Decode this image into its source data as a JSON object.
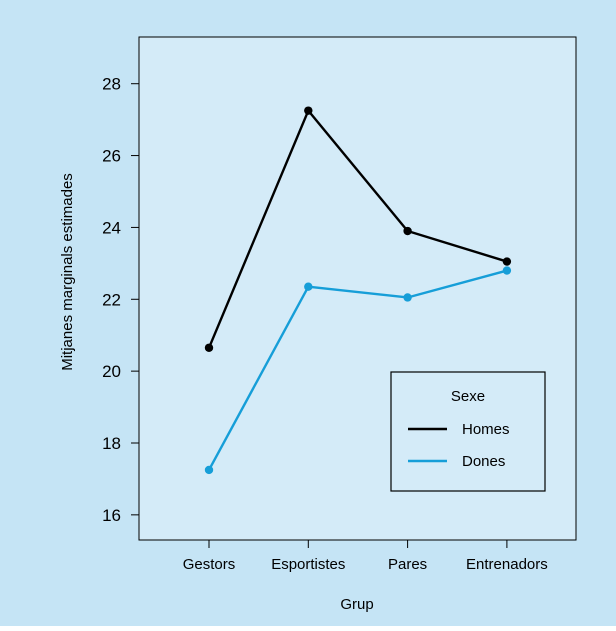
{
  "colors": {
    "outer_background": "#c5e4f5",
    "plot_background": "#d4ebf8",
    "axis": "#000000"
  },
  "chart_data": {
    "type": "line",
    "title": "",
    "xlabel": "Grup",
    "ylabel": "Mitjanes marginals estimades",
    "categories": [
      "Gestors",
      "Esportistes",
      "Pares",
      "Entrenadors"
    ],
    "ylim": [
      15.3,
      29.3
    ],
    "yticks": [
      16,
      18,
      20,
      22,
      24,
      26,
      28
    ],
    "grid": false,
    "legend": {
      "title": "Sexe",
      "position": "bottom-right"
    },
    "series": [
      {
        "name": "Homes",
        "color": "#000000",
        "values": [
          20.65,
          27.25,
          23.9,
          23.05
        ]
      },
      {
        "name": "Dones",
        "color": "#169ed8",
        "values": [
          17.25,
          22.35,
          22.05,
          22.8
        ]
      }
    ]
  }
}
